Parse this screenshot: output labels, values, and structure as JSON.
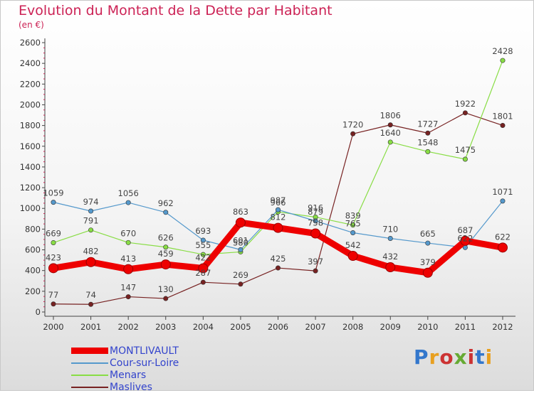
{
  "title": "Evolution du Montant de la Dette par Habitant",
  "subtitle": "(en €)",
  "logo": {
    "text": "Proxiti",
    "colors": [
      "#3377cc",
      "#e8a020",
      "#cc3333",
      "#66aa33",
      "#cc3333",
      "#3377cc",
      "#e8a020"
    ]
  },
  "chart_data": {
    "type": "line",
    "title": "Evolution du Montant de la Dette par Habitant",
    "subtitle": "(en €)",
    "xlabel": "",
    "ylabel": "",
    "x": [
      "2000",
      "2001",
      "2002",
      "2003",
      "2004",
      "2005",
      "2006",
      "2007",
      "2008",
      "2009",
      "2010",
      "2011",
      "2012"
    ],
    "ylim": [
      0,
      2600
    ],
    "yticks": [
      0,
      200,
      400,
      600,
      800,
      1000,
      1200,
      1400,
      1600,
      1800,
      2000,
      2200,
      2400,
      2600
    ],
    "grid": false,
    "legend_position": "bottom-left",
    "series": [
      {
        "name": "MONTLIVAULT",
        "color": "#ee0000",
        "values": [
          423,
          482,
          413,
          459,
          422,
          863,
          812,
          758,
          542,
          432,
          379,
          687,
          622
        ]
      },
      {
        "name": "Cour-sur-Loire",
        "color": "#5599cc",
        "values": [
          1059,
          974,
          1056,
          962,
          693,
          601,
          987,
          879,
          765,
          710,
          665,
          622,
          1071
        ]
      },
      {
        "name": "Menars",
        "color": "#88dd44",
        "values": [
          669,
          791,
          670,
          626,
          555,
          580,
          966,
          916,
          839,
          1640,
          1548,
          1475,
          2428
        ]
      },
      {
        "name": "Maslives",
        "color": "#772222",
        "values": [
          77,
          74,
          147,
          130,
          287,
          269,
          425,
          397,
          1720,
          1806,
          1727,
          1922,
          1801
        ]
      }
    ]
  }
}
